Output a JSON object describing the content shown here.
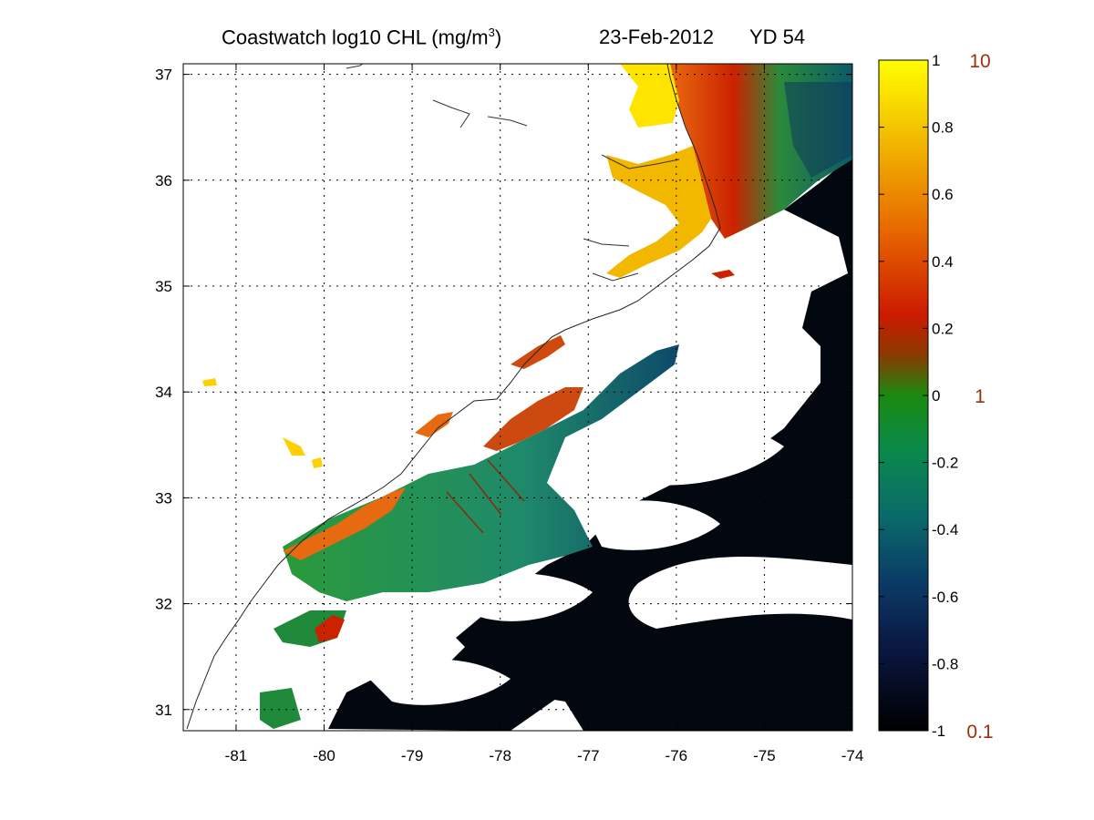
{
  "title": {
    "main": "Coastwatch  log10  CHL (mg/m",
    "sup": "3",
    "close": ")",
    "date": "23-Feb-2012",
    "yd": "YD 54"
  },
  "map": {
    "lon_ticks": [
      "-81",
      "-80",
      "-79",
      "-78",
      "-77",
      "-76",
      "-75",
      "-74"
    ],
    "lat_ticks": [
      "37",
      "36",
      "35",
      "34",
      "33",
      "32",
      "31"
    ],
    "lon_range": [
      -81.6,
      -74
    ],
    "lat_range": [
      30.8,
      37.1
    ]
  },
  "colorbar": {
    "ticks": [
      "1",
      "0.8",
      "0.6",
      "0.4",
      "0.2",
      "0",
      "-0.2",
      "-0.4",
      "-0.6",
      "-0.8",
      "-1"
    ],
    "linear_labels": [
      "10",
      "1",
      "0.1"
    ],
    "colors": [
      "#000000",
      "#0d1f55",
      "#0a4a72",
      "#0a8a60",
      "#1a9a1a",
      "#5a7a10",
      "#c81a00",
      "#e06000",
      "#f0b000",
      "#ffff00"
    ]
  }
}
